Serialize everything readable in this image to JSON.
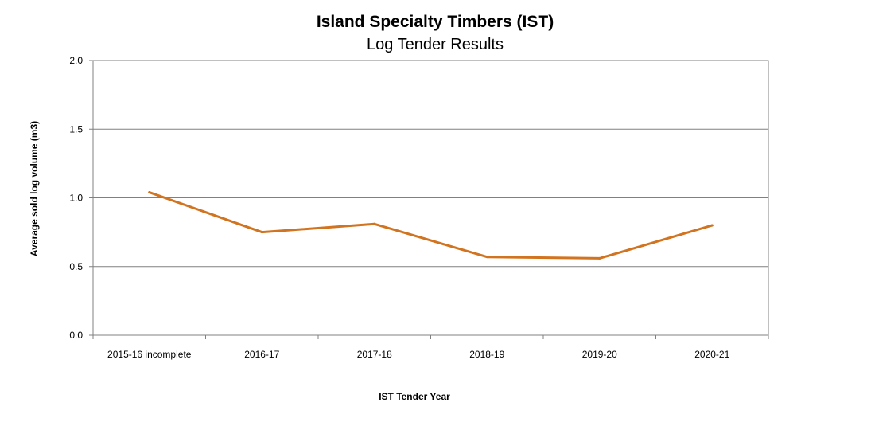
{
  "chart_data": {
    "type": "line",
    "title": "Island Specialty Timbers (IST)",
    "subtitle": "Log Tender Results",
    "xlabel": "IST Tender Year",
    "ylabel": "Average sold log volume (m3)",
    "categories": [
      "2015-16 incomplete",
      "2016-17",
      "2017-18",
      "2018-19",
      "2019-20",
      "2020-21"
    ],
    "series": [
      {
        "values": [
          1.04,
          0.75,
          0.81,
          0.57,
          0.56,
          0.8
        ],
        "color": "#d2731f"
      }
    ],
    "ylim": [
      0,
      2.0
    ],
    "yticks": [
      "0.0",
      "0.5",
      "1.0",
      "1.5",
      "2.0"
    ],
    "ytick_values": [
      0,
      0.5,
      1.0,
      1.5,
      2.0
    ],
    "grid": true,
    "legend": "none"
  }
}
